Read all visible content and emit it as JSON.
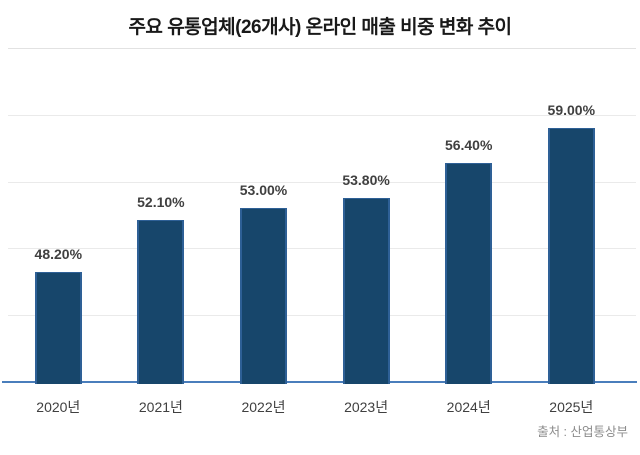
{
  "title": "주요 유통업체(26개사) 온라인 매출 비중 변화 추이",
  "source": "출처 : 산업통상부",
  "chart_data": {
    "type": "bar",
    "title": "주요 유통업체(26개사) 온라인 매출 비중 변화 추이",
    "categories": [
      "2020년",
      "2021년",
      "2022년",
      "2023년",
      "2024년",
      "2025년"
    ],
    "values": [
      48.2,
      52.1,
      53.0,
      53.8,
      56.4,
      59.0
    ],
    "value_labels": [
      "48.20%",
      "52.10%",
      "53.00%",
      "53.80%",
      "56.40%",
      "59.00%"
    ],
    "xlabel": "",
    "ylabel": "",
    "ylim": [
      40,
      65
    ],
    "grid_step": 5,
    "grid": true,
    "legend": false,
    "y_axis_labels_visible": false,
    "annotation": "출처 : 산업통상부",
    "colors": {
      "bar_fill": "#17466b",
      "bar_border": "#2e6096",
      "baseline": "#4a7ebc",
      "gridline": "#eaeaea",
      "label": "#404040",
      "title": "#191919",
      "source": "#8c8c8c"
    }
  }
}
